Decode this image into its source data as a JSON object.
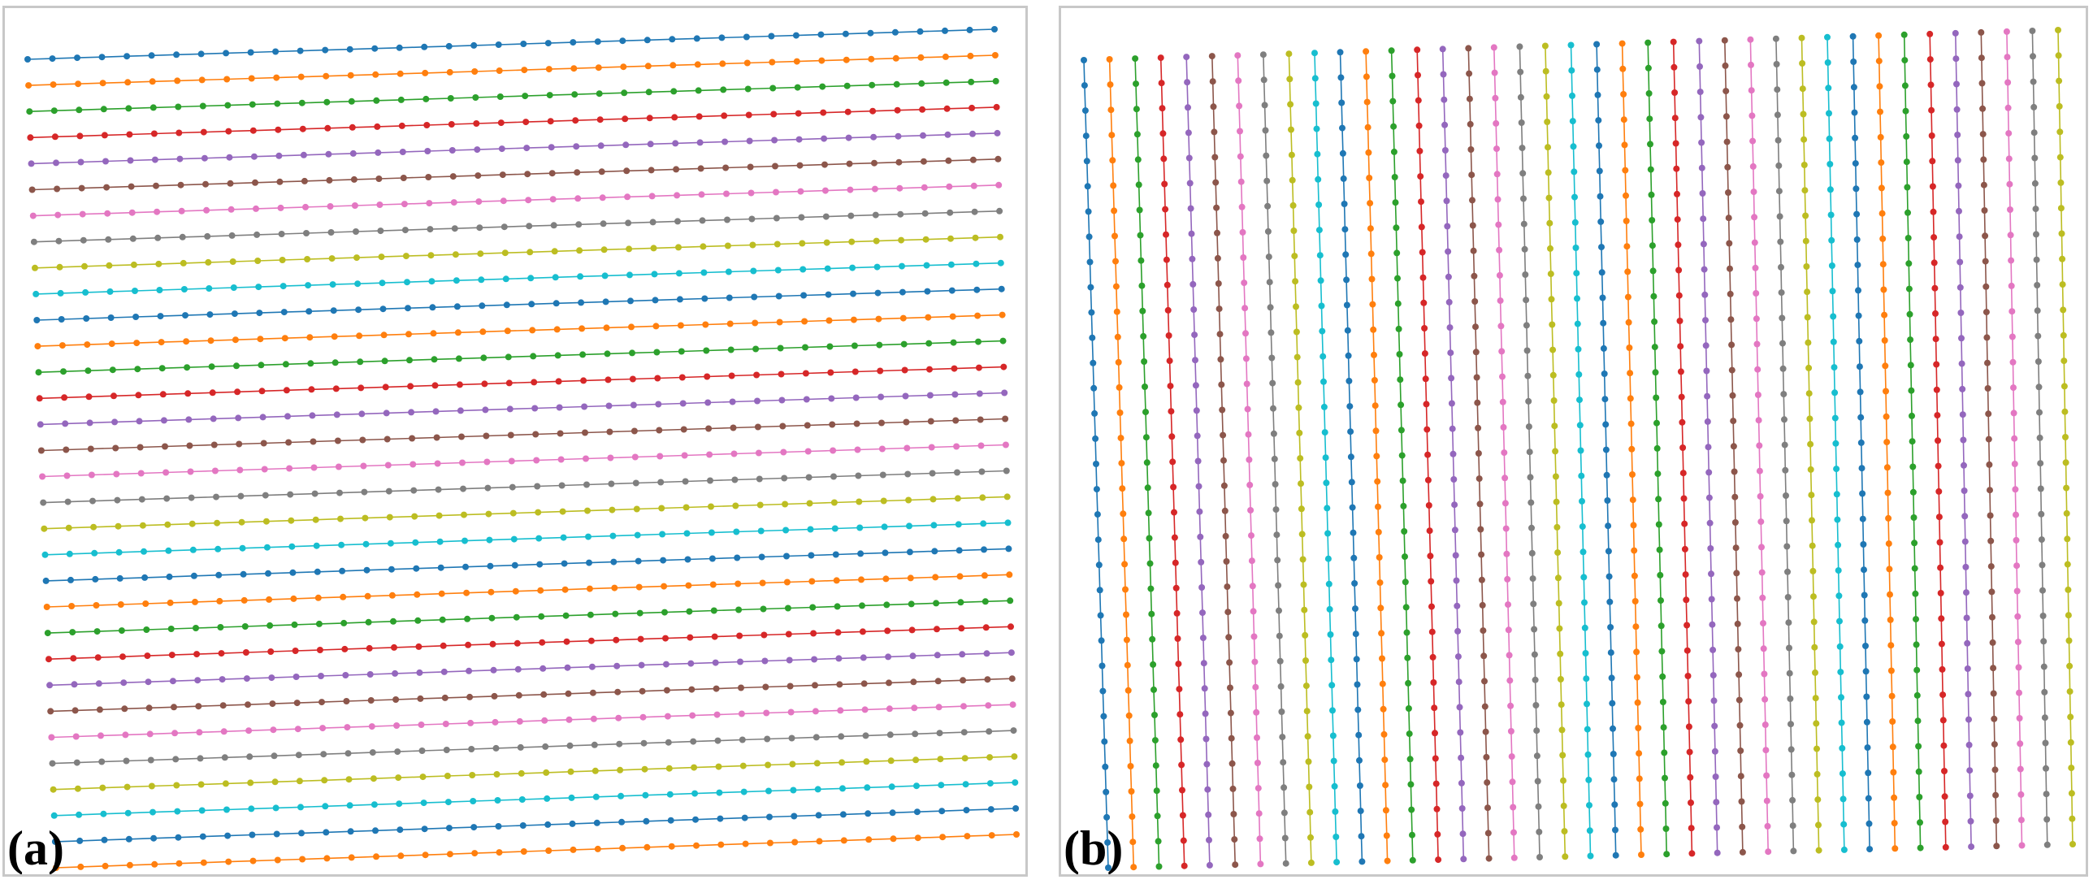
{
  "palette": [
    "#1f77b4",
    "#ff7f0e",
    "#2ca02c",
    "#d62728",
    "#9467bd",
    "#8c564b",
    "#e377c2",
    "#7f7f7f",
    "#bcbd22",
    "#17becf"
  ],
  "chart_data": [
    {
      "type": "line",
      "panel_label": "(a)",
      "orientation": "horizontal",
      "series_count": 32,
      "points_per_series": 40,
      "title": "",
      "xlabel": "",
      "ylabel": "",
      "axes_visible": false,
      "grid": false,
      "legend": "none"
    },
    {
      "type": "line",
      "panel_label": "(b)",
      "orientation": "vertical",
      "series_count": 39,
      "points_per_series": 33,
      "title": "",
      "xlabel": "",
      "ylabel": "",
      "axes_visible": false,
      "grid": false,
      "legend": "none"
    }
  ]
}
